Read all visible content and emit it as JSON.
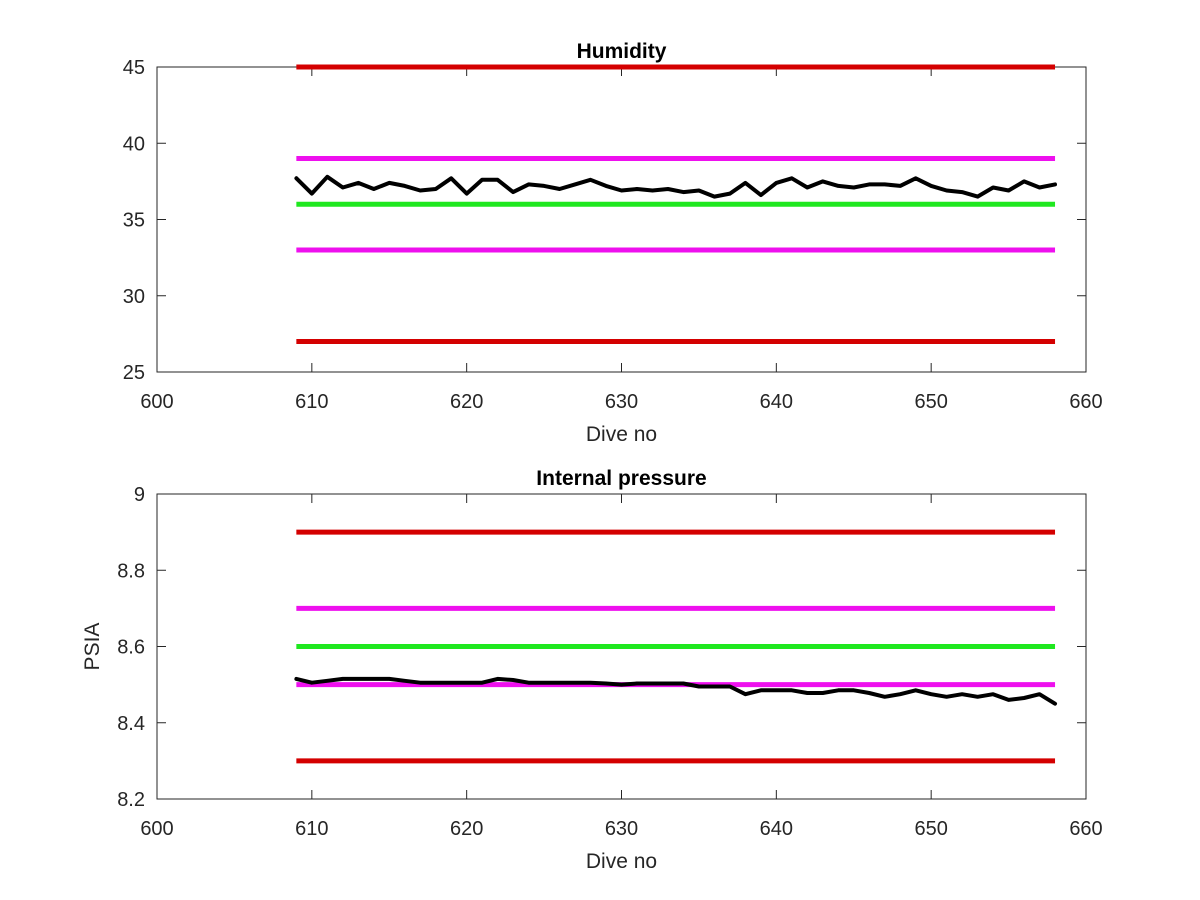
{
  "chart_data": [
    {
      "type": "line",
      "title": "Humidity",
      "xlabel": "Dive no",
      "ylabel": "",
      "xlim": [
        600,
        660
      ],
      "ylim": [
        25,
        45
      ],
      "xticks": [
        "600",
        "610",
        "620",
        "630",
        "640",
        "650",
        "660"
      ],
      "yticks": [
        "25",
        "30",
        "35",
        "40",
        "45"
      ],
      "grid": false,
      "limit_lines": [
        {
          "y": 45,
          "x_range": [
            609,
            658
          ],
          "color": "#d40000"
        },
        {
          "y": 39,
          "x_range": [
            609,
            658
          ],
          "color": "#ee10ee"
        },
        {
          "y": 36,
          "x_range": [
            609,
            658
          ],
          "color": "#1fe81f"
        },
        {
          "y": 33,
          "x_range": [
            609,
            658
          ],
          "color": "#ee10ee"
        },
        {
          "y": 27,
          "x_range": [
            609,
            658
          ],
          "color": "#d40000"
        }
      ],
      "series": [
        {
          "color": "#000000",
          "x": [
            609,
            610,
            611,
            612,
            613,
            614,
            615,
            616,
            617,
            618,
            619,
            620,
            621,
            622,
            623,
            624,
            625,
            626,
            627,
            628,
            629,
            630,
            631,
            632,
            633,
            634,
            635,
            636,
            637,
            638,
            639,
            640,
            641,
            642,
            643,
            644,
            645,
            646,
            647,
            648,
            649,
            650,
            651,
            652,
            653,
            654,
            655,
            656,
            657,
            658
          ],
          "y": [
            37.7,
            36.7,
            37.8,
            37.1,
            37.4,
            37.0,
            37.4,
            37.2,
            36.9,
            37.0,
            37.7,
            36.7,
            37.6,
            37.6,
            36.8,
            37.3,
            37.2,
            37.0,
            37.3,
            37.6,
            37.2,
            36.9,
            37.0,
            36.9,
            37.0,
            36.8,
            36.9,
            36.5,
            36.7,
            37.4,
            36.6,
            37.4,
            37.7,
            37.1,
            37.5,
            37.2,
            37.1,
            37.3,
            37.3,
            37.2,
            37.7,
            37.2,
            36.9,
            36.8,
            36.5,
            37.1,
            36.9,
            37.5,
            37.1,
            37.3
          ]
        }
      ]
    },
    {
      "type": "line",
      "title": "Internal pressure",
      "xlabel": "Dive no",
      "ylabel": "PSIA",
      "xlim": [
        600,
        660
      ],
      "ylim": [
        8.2,
        9
      ],
      "xticks": [
        "600",
        "610",
        "620",
        "630",
        "640",
        "650",
        "660"
      ],
      "yticks": [
        "8.2",
        "8.4",
        "8.6",
        "8.8",
        "9"
      ],
      "grid": false,
      "limit_lines": [
        {
          "y": 8.9,
          "x_range": [
            609,
            658
          ],
          "color": "#d40000"
        },
        {
          "y": 8.7,
          "x_range": [
            609,
            658
          ],
          "color": "#ee10ee"
        },
        {
          "y": 8.6,
          "x_range": [
            609,
            658
          ],
          "color": "#1fe81f"
        },
        {
          "y": 8.5,
          "x_range": [
            609,
            658
          ],
          "color": "#ee10ee"
        },
        {
          "y": 8.3,
          "x_range": [
            609,
            658
          ],
          "color": "#d40000"
        }
      ],
      "series": [
        {
          "color": "#000000",
          "x": [
            609,
            610,
            611,
            612,
            613,
            614,
            615,
            616,
            617,
            618,
            619,
            620,
            621,
            622,
            623,
            624,
            625,
            626,
            627,
            628,
            629,
            630,
            631,
            632,
            633,
            634,
            635,
            636,
            637,
            638,
            639,
            640,
            641,
            642,
            643,
            644,
            645,
            646,
            647,
            648,
            649,
            650,
            651,
            652,
            653,
            654,
            655,
            656,
            657,
            658
          ],
          "y": [
            8.515,
            8.505,
            8.51,
            8.515,
            8.515,
            8.515,
            8.515,
            8.51,
            8.505,
            8.505,
            8.505,
            8.505,
            8.505,
            8.515,
            8.512,
            8.505,
            8.505,
            8.505,
            8.505,
            8.505,
            8.503,
            8.5,
            8.503,
            8.503,
            8.503,
            8.503,
            8.495,
            8.495,
            8.495,
            8.475,
            8.485,
            8.485,
            8.485,
            8.478,
            8.478,
            8.485,
            8.485,
            8.478,
            8.468,
            8.475,
            8.485,
            8.475,
            8.468,
            8.475,
            8.468,
            8.475,
            8.46,
            8.465,
            8.475,
            8.45
          ]
        }
      ]
    }
  ]
}
